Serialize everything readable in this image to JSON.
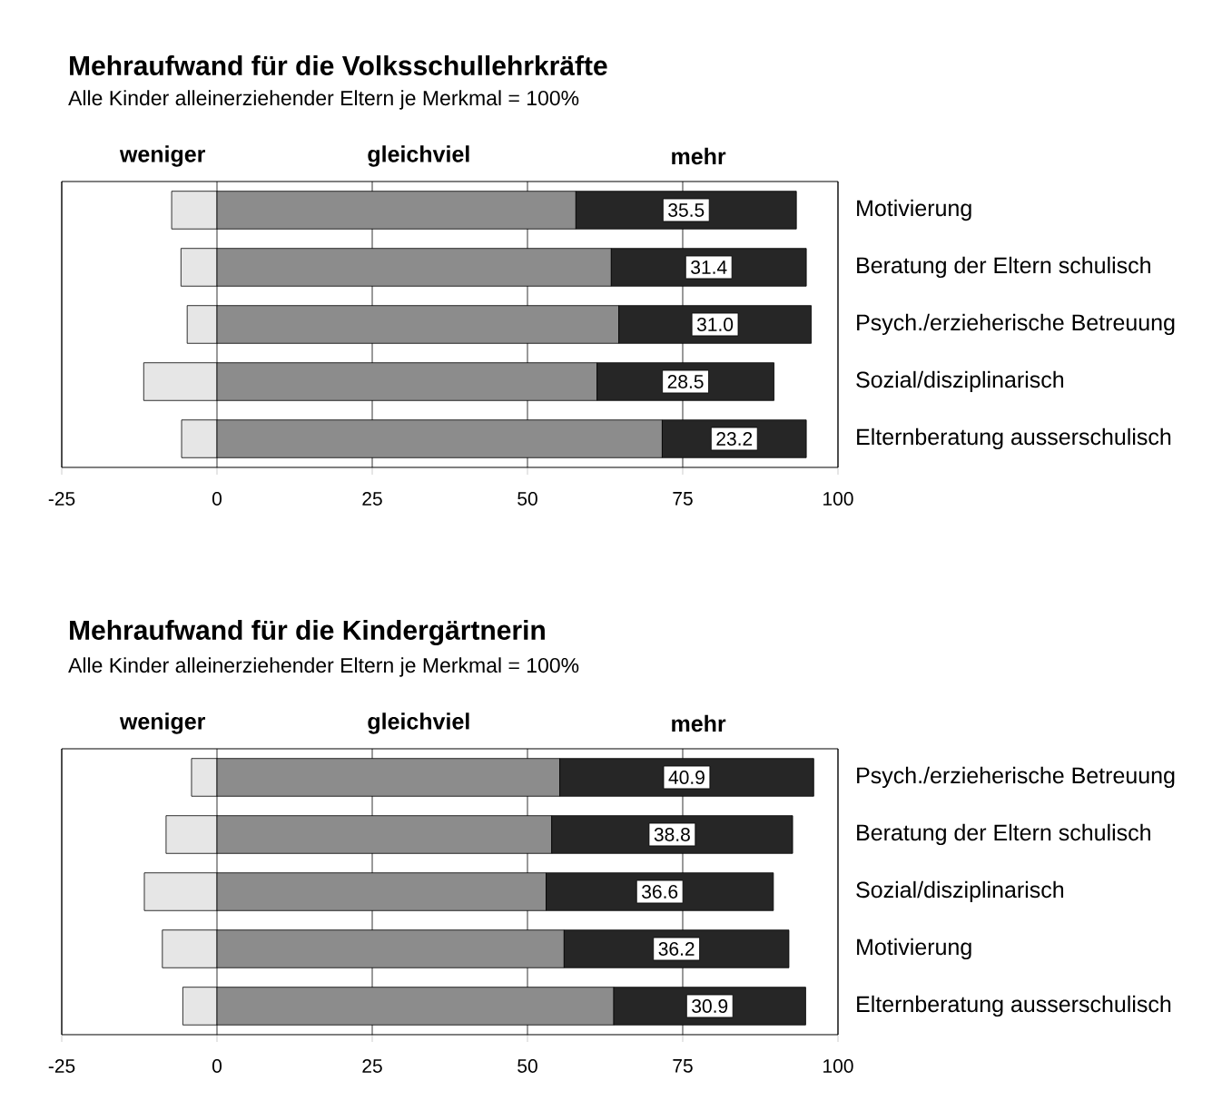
{
  "chart_data": [
    {
      "type": "bar",
      "orientation": "horizontal",
      "stacked": true,
      "title": "Mehraufwand für die Volksschullehrkräfte",
      "subtitle": "Alle Kinder alleinerziehender Eltern je Merkmal = 100%",
      "categories": [
        "Motivierung",
        "Beratung der Eltern schulisch",
        "Psych./erzieherische Betreuung",
        "Sozial/disziplinarisch",
        "Elternberatung ausserschulisch"
      ],
      "series": [
        {
          "name": "weniger",
          "color": "#e6e6e6",
          "values": [
            -7.3,
            -5.8,
            -4.8,
            -11.8,
            -5.7
          ]
        },
        {
          "name": "gleichviel",
          "color": "#8c8c8c",
          "values": [
            57.8,
            63.5,
            64.7,
            61.2,
            71.7
          ]
        },
        {
          "name": "mehr",
          "color": "#262626",
          "values": [
            35.5,
            31.4,
            31.0,
            28.5,
            23.2
          ],
          "value_labels": [
            "35.5",
            "31.4",
            "31.0",
            "28.5",
            "23.2"
          ]
        }
      ],
      "xlim": [
        -25,
        100
      ],
      "xticks": [
        -25,
        0,
        25,
        50,
        75,
        100
      ],
      "grid": "x",
      "legend": "top"
    },
    {
      "type": "bar",
      "orientation": "horizontal",
      "stacked": true,
      "title": "Mehraufwand für die Kindergärtnerin",
      "subtitle": "Alle Kinder alleinerziehender Eltern je Merkmal = 100%",
      "categories": [
        "Psych./erzieherische Betreuung",
        "Beratung der Eltern schulisch",
        "Sozial/disziplinarisch",
        "Motivierung",
        "Elternberatung ausserschulisch"
      ],
      "series": [
        {
          "name": "weniger",
          "color": "#e6e6e6",
          "values": [
            -4.1,
            -8.2,
            -11.7,
            -8.8,
            -5.5
          ]
        },
        {
          "name": "gleichviel",
          "color": "#8c8c8c",
          "values": [
            55.2,
            53.9,
            53.0,
            55.9,
            63.9
          ]
        },
        {
          "name": "mehr",
          "color": "#262626",
          "values": [
            40.9,
            38.8,
            36.6,
            36.2,
            30.9
          ],
          "value_labels": [
            "40.9",
            "38.8",
            "36.6",
            "36.2",
            "30.9"
          ]
        }
      ],
      "xlim": [
        -25,
        100
      ],
      "xticks": [
        -25,
        0,
        25,
        50,
        75,
        100
      ],
      "grid": "x",
      "legend": "top"
    }
  ]
}
